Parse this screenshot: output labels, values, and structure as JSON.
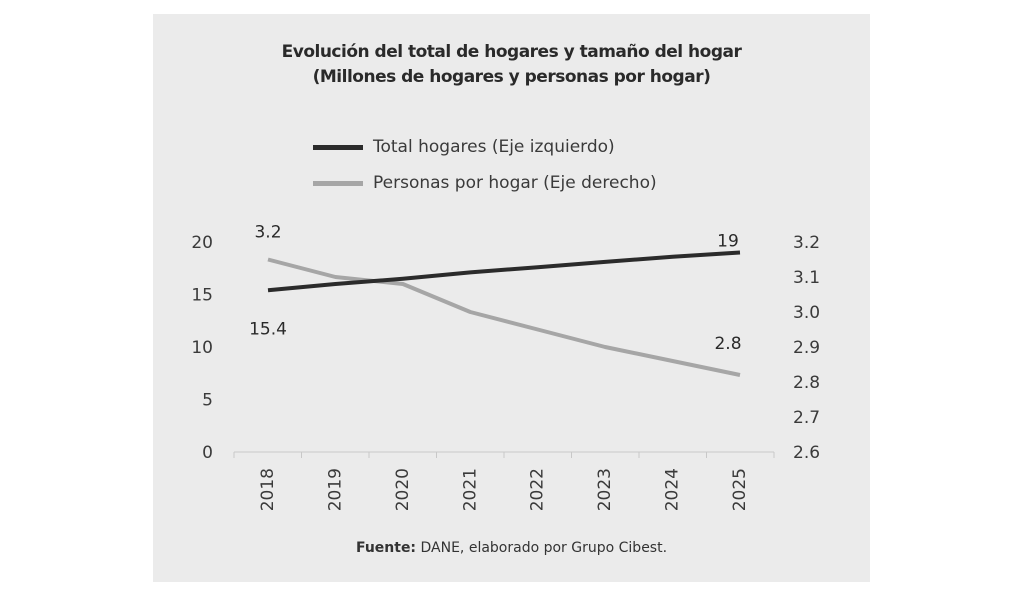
{
  "title_line1": "Evolución del total de hogares y tamaño del hogar",
  "title_line2": "(Millones de hogares y personas por hogar)",
  "source_label": "Fuente:",
  "source_text": " DANE, elaborado por Grupo Cibest.",
  "colors": {
    "panel": "#ebebeb",
    "total_hogares": "#2b2b2b",
    "personas_por_hogar": "#a6a6a6"
  },
  "chart_data": {
    "type": "line",
    "title": "Evolución del total de hogares y tamaño del hogar",
    "subtitle": "(Millones de hogares y personas por hogar)",
    "categories": [
      "2018",
      "2019",
      "2020",
      "2021",
      "2022",
      "2023",
      "2024",
      "2025"
    ],
    "legend_position": "top",
    "grid": false,
    "y_left": {
      "range": [
        0,
        20
      ],
      "ticks": [
        "0",
        "5",
        "10",
        "15",
        "20"
      ]
    },
    "y_right": {
      "range": [
        2.6,
        3.2
      ],
      "ticks": [
        "2.6",
        "2.7",
        "2.8",
        "2.9",
        "3.0",
        "3.1",
        "3.2"
      ]
    },
    "series": [
      {
        "name": "Total hogares (Eje izquierdo)",
        "axis": "left",
        "color": "#2b2b2b",
        "values": [
          15.4,
          16.0,
          16.5,
          17.1,
          17.6,
          18.1,
          18.6,
          19.0
        ]
      },
      {
        "name": "Personas por hogar (Eje derecho)",
        "axis": "right",
        "color": "#a6a6a6",
        "values": [
          3.15,
          3.1,
          3.08,
          3.0,
          2.95,
          2.9,
          2.86,
          2.82
        ]
      }
    ],
    "annotations": [
      {
        "text": "3.2",
        "series": 1,
        "index": 0
      },
      {
        "text": "15.4",
        "series": 0,
        "index": 0
      },
      {
        "text": "19",
        "series": 0,
        "index": 7
      },
      {
        "text": "2.8",
        "series": 1,
        "index": 7
      }
    ]
  }
}
